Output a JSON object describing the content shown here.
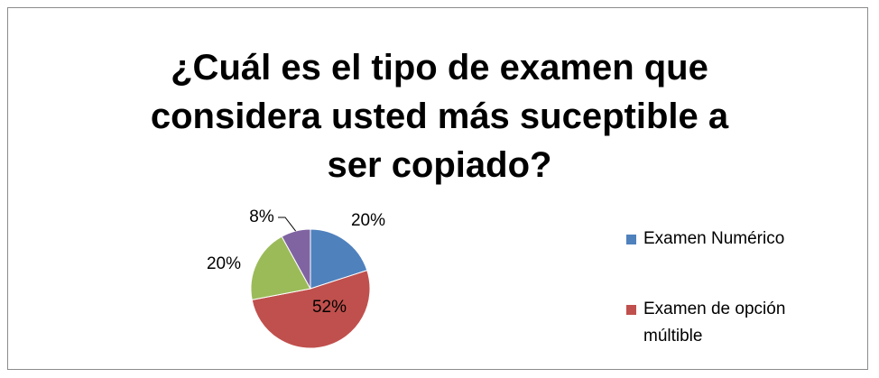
{
  "chart_data": {
    "type": "pie",
    "title": "¿Cuál es el tipo de examen que considera usted más suceptible a ser copiado?",
    "categories": [
      "Examen Numérico",
      "Examen de opción múltible",
      null,
      null
    ],
    "values": [
      20,
      52,
      20,
      8
    ],
    "value_labels": [
      "20%",
      "52%",
      "20%",
      "8%"
    ],
    "colors": [
      "#4f81bd",
      "#c0504d",
      "#9bbb59",
      "#8064a2"
    ],
    "legend": "right"
  }
}
